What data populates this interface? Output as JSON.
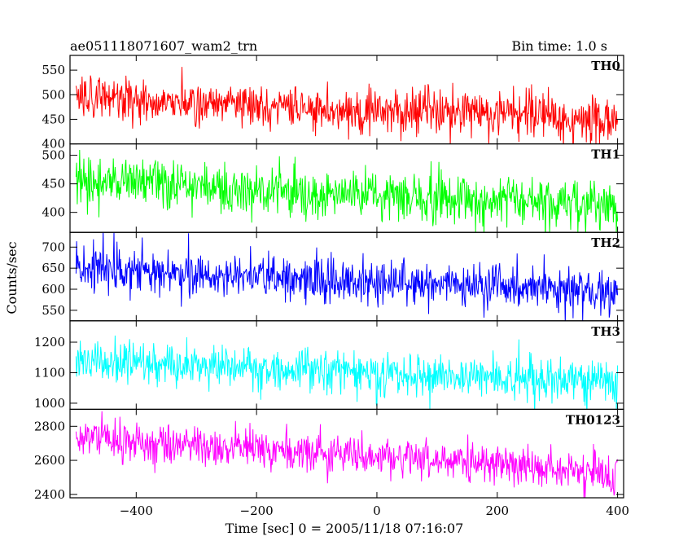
{
  "header": {
    "title": "ae051118071607_wam2_trn",
    "bin_time": "Bin time: 1.0 s"
  },
  "chart_data": {
    "type": "line",
    "xlabel": "Time [sec] 0 = 2005/11/18 07:16:07",
    "ylabel": "Counts/sec",
    "xlim": [
      -510,
      410
    ],
    "x_ticks": [
      -400,
      -200,
      0,
      200,
      400
    ],
    "x_tick_labels": [
      "−400",
      "−200",
      "0",
      "200",
      "400"
    ],
    "x_start": -500,
    "x_end": 400,
    "x_step": 1,
    "panels": [
      {
        "label": "TH0",
        "color": "#ff0000",
        "ylim": [
          400,
          580
        ],
        "y_ticks": [
          400,
          450,
          500,
          550
        ],
        "y_tick_labels": [
          "400",
          "450",
          "500",
          "550"
        ],
        "mean_start": 495,
        "mean_end": 450,
        "noise_sigma": 24
      },
      {
        "label": "TH1",
        "color": "#00ff00",
        "ylim": [
          365,
          520
        ],
        "y_ticks": [
          400,
          450,
          500
        ],
        "y_tick_labels": [
          "400",
          "450",
          "500"
        ],
        "mean_start": 455,
        "mean_end": 410,
        "noise_sigma": 22
      },
      {
        "label": "TH2",
        "color": "#0000ff",
        "ylim": [
          525,
          735
        ],
        "y_ticks": [
          550,
          600,
          650,
          700
        ],
        "y_tick_labels": [
          "550",
          "600",
          "650",
          "700"
        ],
        "mean_start": 650,
        "mean_end": 595,
        "noise_sigma": 27
      },
      {
        "label": "TH3",
        "color": "#00ffff",
        "ylim": [
          980,
          1270
        ],
        "y_ticks": [
          1000,
          1100,
          1200
        ],
        "y_tick_labels": [
          "1000",
          "1100",
          "1200"
        ],
        "mean_start": 1140,
        "mean_end": 1065,
        "noise_sigma": 36
      },
      {
        "label": "TH0123",
        "color": "#ff00ff",
        "ylim": [
          2380,
          2900
        ],
        "y_ticks": [
          2400,
          2600,
          2800
        ],
        "y_tick_labels": [
          "2400",
          "2600",
          "2800"
        ],
        "mean_start": 2735,
        "mean_end": 2530,
        "noise_sigma": 58
      }
    ]
  }
}
